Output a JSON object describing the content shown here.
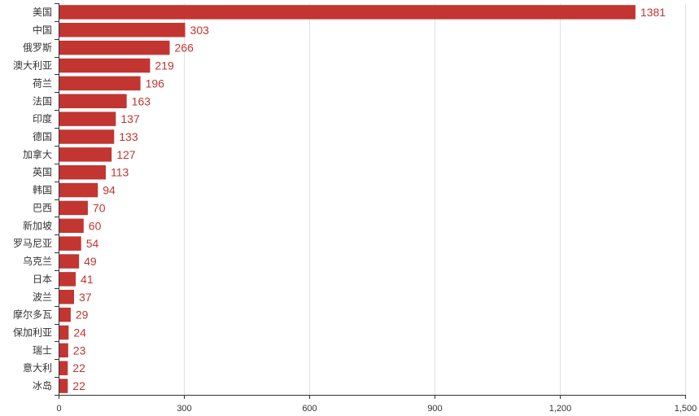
{
  "chart_data": {
    "type": "bar",
    "orientation": "horizontal",
    "categories": [
      "美国",
      "中国",
      "俄罗斯",
      "澳大利亚",
      "荷兰",
      "法国",
      "印度",
      "德国",
      "加拿大",
      "英国",
      "韩国",
      "巴西",
      "新加坡",
      "罗马尼亚",
      "乌克兰",
      "日本",
      "波兰",
      "摩尔多瓦",
      "保加利亚",
      "瑞士",
      "意大利",
      "冰岛"
    ],
    "values": [
      1381,
      303,
      266,
      219,
      196,
      163,
      137,
      133,
      127,
      113,
      94,
      70,
      60,
      54,
      49,
      41,
      37,
      29,
      24,
      23,
      22,
      22
    ],
    "xlim": [
      0,
      1500
    ],
    "xticks": [
      0,
      300,
      600,
      900,
      1200,
      1500
    ],
    "xtick_labels": [
      "0",
      "300",
      "600",
      "900",
      "1,200",
      "1,500"
    ],
    "grid": true,
    "bar_color": "#c23531",
    "label_color": "#c23531"
  }
}
